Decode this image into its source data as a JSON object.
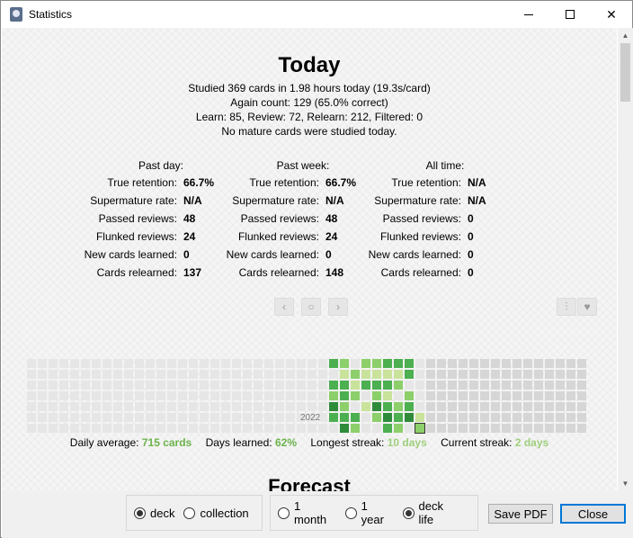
{
  "window": {
    "title": "Statistics"
  },
  "today": {
    "heading": "Today",
    "line1": "Studied 369 cards in 1.98 hours today (19.3s/card)",
    "line2": "Again count: 129 (65.0% correct)",
    "line3": "Learn: 85, Review: 72, Relearn: 212, Filtered: 0",
    "line4": "No mature cards were studied today."
  },
  "stats": {
    "columns": [
      {
        "header": "Past day:",
        "rows": [
          {
            "label": "True retention:",
            "value": "66.7%"
          },
          {
            "label": "Supermature rate:",
            "value": "N/A"
          },
          {
            "label": "Passed reviews:",
            "value": "48"
          },
          {
            "label": "Flunked reviews:",
            "value": "24"
          },
          {
            "label": "New cards learned:",
            "value": "0"
          },
          {
            "label": "Cards relearned:",
            "value": "137"
          }
        ]
      },
      {
        "header": "Past week:",
        "rows": [
          {
            "label": "True retention:",
            "value": "66.7%"
          },
          {
            "label": "Supermature rate:",
            "value": "N/A"
          },
          {
            "label": "Passed reviews:",
            "value": "48"
          },
          {
            "label": "Flunked reviews:",
            "value": "24"
          },
          {
            "label": "New cards learned:",
            "value": "0"
          },
          {
            "label": "Cards relearned:",
            "value": "148"
          }
        ]
      },
      {
        "header": "All time:",
        "rows": [
          {
            "label": "True retention:",
            "value": "N/A"
          },
          {
            "label": "Supermature rate:",
            "value": "N/A"
          },
          {
            "label": "Passed reviews:",
            "value": "0"
          },
          {
            "label": "Flunked reviews:",
            "value": "0"
          },
          {
            "label": "New cards learned:",
            "value": "0"
          },
          {
            "label": "Cards relearned:",
            "value": "0"
          }
        ]
      }
    ]
  },
  "heatmap": {
    "year": "2022",
    "nav_icons": [
      "chevron-left-icon",
      "circle-icon",
      "chevron-right-icon"
    ],
    "option_icons": [
      "sliders-icon",
      "heart-icon"
    ],
    "colors": {
      "empty": "#e6e6e6",
      "future": "#d6d6d6",
      "light": "#c9e39a",
      "mid": "#8ccf6b",
      "dark": "#4caf50",
      "darkest": "#2e8b3a"
    }
  },
  "footer_stats": {
    "daily_average_label": "Daily average:",
    "daily_average_value": "715 cards",
    "days_learned_label": "Days learned:",
    "days_learned_value": "62%",
    "longest_streak_label": "Longest streak:",
    "longest_streak_value": "10 days",
    "current_streak_label": "Current streak:",
    "current_streak_value": "2 days"
  },
  "forecast": {
    "heading": "Forecast"
  },
  "bottom": {
    "scope_options": [
      {
        "label": "deck",
        "selected": true
      },
      {
        "label": "collection",
        "selected": false
      }
    ],
    "range_options": [
      {
        "label": "1 month",
        "selected": false
      },
      {
        "label": "1 year",
        "selected": false
      },
      {
        "label": "deck life",
        "selected": true
      }
    ],
    "save_pdf_label": "Save PDF",
    "close_label": "Close"
  }
}
